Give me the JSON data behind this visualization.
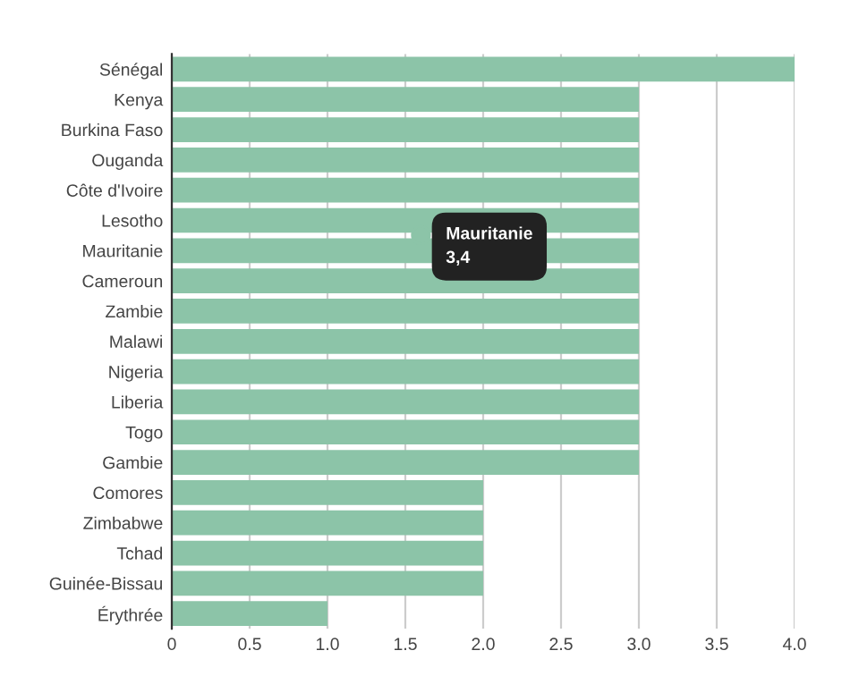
{
  "chart_data": {
    "type": "bar",
    "orientation": "horizontal",
    "categories": [
      "Sénégal",
      "Kenya",
      "Burkina Faso",
      "Ouganda",
      "Côte d'Ivoire",
      "Lesotho",
      "Mauritanie",
      "Cameroun",
      "Zambie",
      "Malawi",
      "Nigeria",
      "Liberia",
      "Togo",
      "Gambie",
      "Comores",
      "Zimbabwe",
      "Tchad",
      "Guinée-Bissau",
      "Érythrée"
    ],
    "values": [
      4.0,
      3.0,
      3.0,
      3.0,
      3.0,
      3.0,
      3.0,
      3.0,
      3.0,
      3.0,
      3.0,
      3.0,
      3.0,
      3.0,
      2.0,
      2.0,
      2.0,
      2.0,
      1.0
    ],
    "color": "#8cc4a8",
    "xlim": [
      0,
      4.0
    ],
    "xticks": [
      0,
      0.5,
      {
        "value": 1,
        "label": "1.0"
      },
      1.5,
      {
        "value": 2,
        "label": "2.0"
      },
      2.5,
      {
        "value": 3,
        "label": "3.0"
      },
      3.5,
      {
        "value": 4,
        "label": "4.0"
      }
    ],
    "grid": "x",
    "annotations": [
      "Mauritanie\n3,4"
    ]
  }
}
